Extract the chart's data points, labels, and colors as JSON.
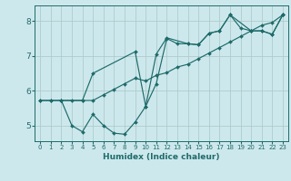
{
  "background_color": "#cde8ec",
  "grid_color": "#aecccc",
  "line_color": "#1e6b6b",
  "xlabel": "Humidex (Indice chaleur)",
  "xlim": [
    -0.5,
    23.5
  ],
  "ylim": [
    4.55,
    8.45
  ],
  "yticks": [
    5,
    6,
    7,
    8
  ],
  "xticks": [
    0,
    1,
    2,
    3,
    4,
    5,
    6,
    7,
    8,
    9,
    10,
    11,
    12,
    13,
    14,
    15,
    16,
    17,
    18,
    19,
    20,
    21,
    22,
    23
  ],
  "line1_x": [
    0,
    1,
    2,
    3,
    4,
    5,
    6,
    7,
    8,
    9,
    10,
    11,
    12,
    13,
    14,
    15,
    16,
    17,
    18,
    19,
    20,
    21,
    22,
    23
  ],
  "line1_y": [
    5.72,
    5.72,
    5.72,
    5.0,
    4.82,
    5.32,
    5.0,
    4.78,
    4.75,
    5.1,
    5.55,
    6.2,
    7.5,
    7.35,
    7.35,
    7.32,
    7.65,
    7.72,
    8.18,
    7.8,
    7.72,
    7.72,
    7.62,
    8.18
  ],
  "line2_x": [
    0,
    1,
    2,
    3,
    4,
    5,
    6,
    7,
    8,
    9,
    10,
    11,
    12,
    13,
    14,
    15,
    16,
    17,
    18,
    19,
    20,
    21,
    22,
    23
  ],
  "line2_y": [
    5.72,
    5.72,
    5.72,
    5.72,
    5.72,
    5.72,
    5.88,
    6.04,
    6.2,
    6.36,
    6.28,
    6.44,
    6.52,
    6.68,
    6.76,
    6.92,
    7.08,
    7.24,
    7.4,
    7.56,
    7.72,
    7.88,
    7.96,
    8.18
  ],
  "line3_x": [
    2,
    4,
    5,
    9,
    10,
    11,
    12,
    14,
    15,
    16,
    17,
    18,
    20,
    21,
    22,
    23
  ],
  "line3_y": [
    5.72,
    5.72,
    6.5,
    7.12,
    5.55,
    7.05,
    7.52,
    7.35,
    7.32,
    7.65,
    7.72,
    8.18,
    7.72,
    7.72,
    7.62,
    8.18
  ]
}
